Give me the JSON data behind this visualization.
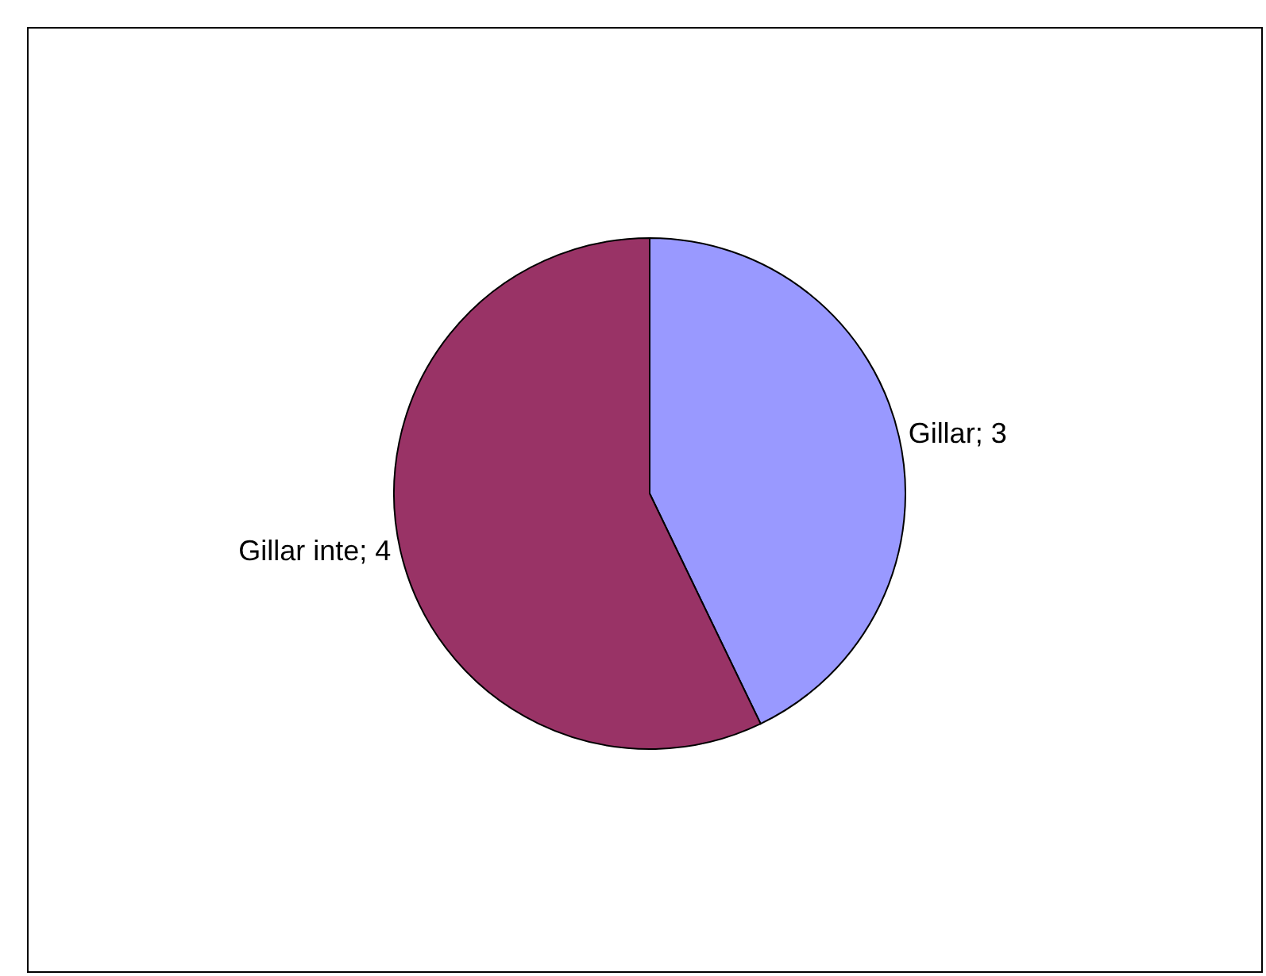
{
  "chart_data": {
    "type": "pie",
    "categories": [
      "Gillar",
      "Gillar inte"
    ],
    "values": [
      3,
      4
    ],
    "colors": [
      "#9999ff",
      "#993366"
    ],
    "value_labels": [
      "; 3",
      "; 4"
    ]
  }
}
